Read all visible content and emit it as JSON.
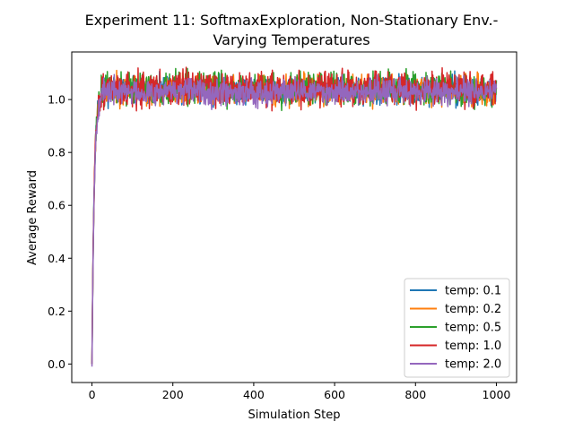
{
  "chart_data": {
    "type": "line",
    "title_line1": "Experiment 11: SoftmaxExploration, Non-Stationary Env.-",
    "title_line2": "Varying Temperatures",
    "xlabel": "Simulation Step",
    "ylabel": "Average Reward",
    "xlim": [
      -50,
      1050
    ],
    "ylim": [
      -0.07,
      1.18
    ],
    "xticks": [
      0,
      200,
      400,
      600,
      800,
      1000
    ],
    "xtick_labels": [
      "0",
      "200",
      "400",
      "600",
      "800",
      "1000"
    ],
    "yticks": [
      0.0,
      0.2,
      0.4,
      0.6,
      0.8,
      1.0
    ],
    "ytick_labels": [
      "0.0",
      "0.2",
      "0.4",
      "0.6",
      "0.8",
      "1.0"
    ],
    "legend_position": "lower-right",
    "x": {
      "start": 0,
      "end": 1000,
      "step": 1
    },
    "series": [
      {
        "name": "temp: 0.1",
        "color": "#1f77b4",
        "start": 0.0,
        "plateau": 1.035,
        "noise": 0.025,
        "seed": 11
      },
      {
        "name": "temp: 0.2",
        "color": "#ff7f0e",
        "start": 0.0,
        "plateau": 1.035,
        "noise": 0.027,
        "seed": 23
      },
      {
        "name": "temp: 0.5",
        "color": "#2ca02c",
        "start": 0.0,
        "plateau": 1.04,
        "noise": 0.03,
        "seed": 37
      },
      {
        "name": "temp: 1.0",
        "color": "#d62728",
        "start": 0.0,
        "plateau": 1.04,
        "noise": 0.032,
        "seed": 51
      },
      {
        "name": "temp: 2.0",
        "color": "#9467bd",
        "start": -0.01,
        "plateau": 1.03,
        "noise": 0.024,
        "seed": 67
      }
    ]
  }
}
